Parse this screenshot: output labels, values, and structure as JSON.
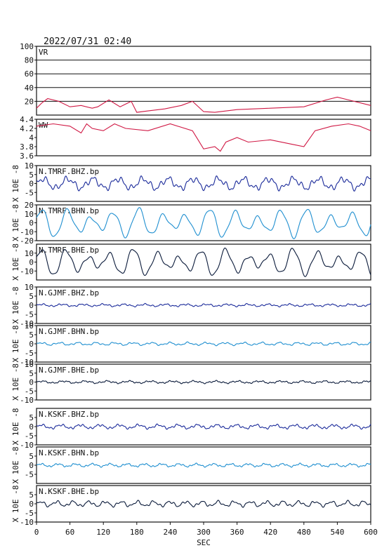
{
  "title": "2022/07/31 02:40",
  "xlabel": "SEC",
  "x_ticks": [
    0,
    60,
    120,
    180,
    240,
    300,
    360,
    420,
    480,
    540,
    600
  ],
  "chart_data": [
    {
      "type": "line",
      "name": "VR",
      "ylim": [
        0,
        100
      ],
      "yticks": [
        20,
        40,
        60,
        80,
        100
      ],
      "ylabel": "",
      "grid": true,
      "color": "#d01844",
      "x": [
        0,
        10,
        20,
        40,
        60,
        80,
        100,
        110,
        130,
        150,
        170,
        180,
        200,
        230,
        260,
        280,
        300,
        320,
        360,
        420,
        480,
        520,
        540,
        560,
        600
      ],
      "y": [
        10,
        18,
        24,
        20,
        12,
        14,
        10,
        12,
        22,
        12,
        20,
        4,
        6,
        9,
        14,
        20,
        5,
        4,
        8,
        10,
        12,
        22,
        26,
        22,
        14
      ]
    },
    {
      "type": "line",
      "name": "WW",
      "ylim": [
        3.6,
        4.4
      ],
      "yticks": [
        3.6,
        3.8,
        4.0,
        4.2,
        4.4
      ],
      "ylabel": "",
      "grid": false,
      "color": "#d01844",
      "x": [
        0,
        30,
        60,
        80,
        90,
        100,
        120,
        140,
        160,
        200,
        240,
        280,
        290,
        300,
        320,
        330,
        340,
        360,
        380,
        420,
        460,
        480,
        500,
        530,
        560,
        580,
        600
      ],
      "y": [
        4.25,
        4.3,
        4.25,
        4.1,
        4.3,
        4.2,
        4.15,
        4.3,
        4.2,
        4.15,
        4.3,
        4.15,
        3.95,
        3.75,
        3.8,
        3.7,
        3.9,
        4.0,
        3.9,
        3.95,
        3.85,
        3.8,
        4.15,
        4.25,
        4.3,
        4.25,
        4.15
      ]
    },
    {
      "type": "line",
      "name": "N.TMRF.BHZ.bp",
      "ylim": [
        -10,
        10
      ],
      "yticks": [
        -5,
        0,
        5,
        10
      ],
      "ylabel": "X 10E -8",
      "grid": false,
      "color": "#1a2a9a",
      "waveform": {
        "amps": [
          2.6,
          1.2,
          0.8
        ],
        "periods": [
          45,
          17,
          9
        ]
      }
    },
    {
      "type": "line",
      "name": "N.TMRF.BHN.bp",
      "ylim": [
        -20,
        20
      ],
      "yticks": [
        -20,
        -10,
        0,
        10,
        20
      ],
      "ylabel": "X 10E -8",
      "grid": false,
      "color": "#1f8fd0",
      "waveform": {
        "amps": [
          11,
          5,
          2
        ],
        "periods": [
          43,
          61,
          19
        ]
      }
    },
    {
      "type": "line",
      "name": "N.TMRF.BHE.bp",
      "ylim": [
        -20,
        20
      ],
      "yticks": [
        -10,
        0,
        10
      ],
      "ylabel": "X 10E -8",
      "grid": false,
      "color": "#0a1a3a",
      "waveform": {
        "amps": [
          10,
          5,
          2
        ],
        "periods": [
          41,
          57,
          17
        ]
      }
    },
    {
      "type": "line",
      "name": "N.GJMF.BHZ.bp",
      "ylim": [
        -10,
        10
      ],
      "yticks": [
        -10,
        -5,
        0,
        5,
        10
      ],
      "ylabel": "X 10E -8",
      "grid": false,
      "color": "#1a2a9a",
      "waveform": {
        "amps": [
          0.5,
          0.3,
          0.2
        ],
        "periods": [
          37,
          13,
          7
        ]
      }
    },
    {
      "type": "line",
      "name": "N.GJMF.BHN.bp",
      "ylim": [
        -10,
        10
      ],
      "yticks": [
        -10,
        -5,
        0,
        5,
        10
      ],
      "ylabel": "X 10E -8",
      "grid": false,
      "color": "#1f8fd0",
      "waveform": {
        "amps": [
          0.6,
          0.3,
          0.2
        ],
        "periods": [
          33,
          15,
          8
        ]
      }
    },
    {
      "type": "line",
      "name": "N.GJMF.BHE.bp",
      "ylim": [
        -10,
        10
      ],
      "yticks": [
        -10,
        -5,
        0,
        5,
        10
      ],
      "ylabel": "X 10E -8",
      "grid": false,
      "color": "#0a1a3a",
      "waveform": {
        "amps": [
          0.5,
          0.3,
          0.2
        ],
        "periods": [
          39,
          14,
          6
        ]
      }
    },
    {
      "type": "line",
      "name": "N.KSKF.BHZ.bp",
      "ylim": [
        -10,
        10
      ],
      "yticks": [
        -10,
        -5,
        0,
        5
      ],
      "ylabel": "X 10E -8",
      "grid": false,
      "color": "#1a2a9a",
      "waveform": {
        "amps": [
          0.9,
          0.4,
          0.3
        ],
        "periods": [
          35,
          12,
          7
        ]
      }
    },
    {
      "type": "line",
      "name": "N.KSKF.BHN.bp",
      "ylim": [
        -10,
        10
      ],
      "yticks": [
        -5,
        0,
        5
      ],
      "ylabel": "X 10E -8",
      "grid": false,
      "color": "#1f8fd0",
      "waveform": {
        "amps": [
          0.7,
          0.3,
          0.2
        ],
        "periods": [
          31,
          11,
          6
        ]
      }
    },
    {
      "type": "line",
      "name": "N.KSKF.BHE.bp",
      "ylim": [
        -10,
        10
      ],
      "yticks": [
        -10,
        -5,
        0,
        5
      ],
      "ylabel": "X 10E -8",
      "grid": false,
      "color": "#0a1a3a",
      "waveform": {
        "amps": [
          1.2,
          0.5,
          0.3
        ],
        "periods": [
          29,
          13,
          8
        ]
      }
    }
  ]
}
